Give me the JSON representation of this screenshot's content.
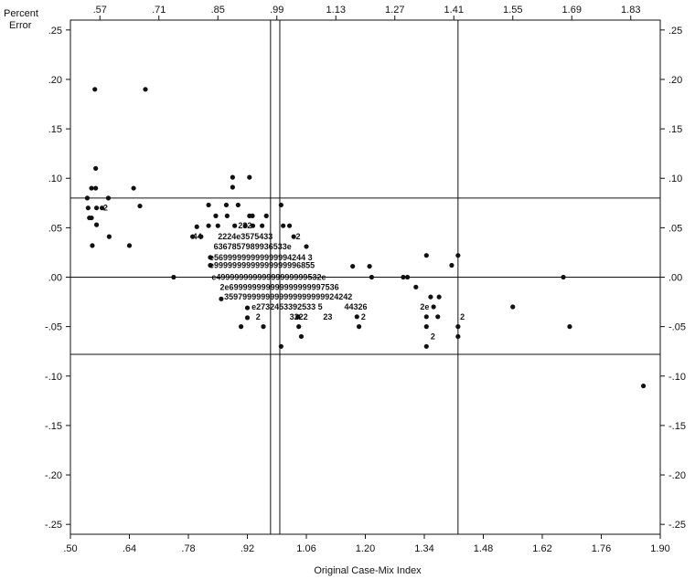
{
  "chart_data": {
    "type": "scatter",
    "xlabel": "Original Case-Mix Index",
    "ylabel": [
      "Percent",
      "Error"
    ],
    "xlim": [
      0.5,
      1.9
    ],
    "ylim": [
      -0.26,
      0.26
    ],
    "x_ticks_bottom": [
      ".50",
      ".64",
      ".78",
      ".92",
      "1.06",
      "1.20",
      "1.34",
      "1.48",
      "1.62",
      "1.76",
      "1.90"
    ],
    "x_ticks_top": [
      ".57",
      ".71",
      ".85",
      ".99",
      "1.13",
      "1.27",
      "1.41",
      "1.55",
      "1.69",
      "1.83"
    ],
    "y_ticks": [
      ".25",
      ".20",
      ".15",
      ".10",
      ".05",
      ".00",
      "-.05",
      "-.10",
      "-.15",
      "-.20",
      "-.25"
    ],
    "y_tick_values": [
      0.25,
      0.2,
      0.15,
      0.1,
      0.05,
      0.0,
      -0.05,
      -0.1,
      -0.15,
      -0.2,
      -0.25
    ],
    "reference_lines": {
      "horizontal": [
        0.08,
        0.0,
        -0.078
      ],
      "vertical": [
        0.975,
        0.997,
        1.42
      ]
    },
    "points": [
      [
        0.54,
        0.08
      ],
      [
        0.542,
        0.07
      ],
      [
        0.545,
        0.06
      ],
      [
        0.55,
        0.09
      ],
      [
        0.55,
        0.06
      ],
      [
        0.552,
        0.032
      ],
      [
        0.558,
        0.19
      ],
      [
        0.56,
        0.11
      ],
      [
        0.56,
        0.09
      ],
      [
        0.562,
        0.07
      ],
      [
        0.562,
        0.053
      ],
      [
        0.575,
        0.07
      ],
      [
        0.59,
        0.08
      ],
      [
        0.592,
        0.041
      ],
      [
        0.64,
        0.032
      ],
      [
        0.65,
        0.09
      ],
      [
        0.665,
        0.072
      ],
      [
        0.678,
        0.19
      ],
      [
        0.745,
        0.0
      ],
      [
        0.79,
        0.041
      ],
      [
        0.8,
        0.051
      ],
      [
        0.81,
        0.041
      ],
      [
        0.828,
        0.073
      ],
      [
        0.828,
        0.052
      ],
      [
        0.832,
        0.02
      ],
      [
        0.832,
        0.012
      ],
      [
        0.845,
        0.062
      ],
      [
        0.85,
        0.052
      ],
      [
        0.858,
        -0.022
      ],
      [
        0.87,
        0.073
      ],
      [
        0.872,
        0.062
      ],
      [
        0.885,
        0.101
      ],
      [
        0.885,
        0.091
      ],
      [
        0.89,
        0.052
      ],
      [
        0.898,
        0.073
      ],
      [
        0.905,
        -0.05
      ],
      [
        0.915,
        0.052
      ],
      [
        0.92,
        -0.031
      ],
      [
        0.92,
        -0.041
      ],
      [
        0.925,
        0.101
      ],
      [
        0.925,
        0.062
      ],
      [
        0.932,
        0.062
      ],
      [
        0.933,
        0.052
      ],
      [
        0.955,
        0.052
      ],
      [
        0.958,
        -0.05
      ],
      [
        0.965,
        0.062
      ],
      [
        1.0,
        0.073
      ],
      [
        1.0,
        -0.07
      ],
      [
        1.005,
        0.052
      ],
      [
        1.02,
        0.052
      ],
      [
        1.03,
        0.041
      ],
      [
        1.04,
        -0.04
      ],
      [
        1.042,
        -0.05
      ],
      [
        1.048,
        -0.06
      ],
      [
        1.06,
        0.031
      ],
      [
        1.17,
        0.011
      ],
      [
        1.18,
        -0.04
      ],
      [
        1.185,
        -0.05
      ],
      [
        1.21,
        0.011
      ],
      [
        1.215,
        0.0
      ],
      [
        1.29,
        0.0
      ],
      [
        1.3,
        0.0
      ],
      [
        1.32,
        -0.01
      ],
      [
        1.345,
        0.022
      ],
      [
        1.345,
        -0.04
      ],
      [
        1.345,
        -0.05
      ],
      [
        1.345,
        -0.07
      ],
      [
        1.355,
        -0.02
      ],
      [
        1.362,
        -0.03
      ],
      [
        1.372,
        -0.04
      ],
      [
        1.375,
        -0.02
      ],
      [
        1.405,
        0.012
      ],
      [
        1.42,
        0.022
      ],
      [
        1.42,
        -0.06
      ],
      [
        1.42,
        -0.05
      ],
      [
        1.55,
        -0.03
      ],
      [
        1.67,
        0.0
      ],
      [
        1.685,
        -0.05
      ],
      [
        1.86,
        -0.11
      ]
    ],
    "digit_labels": [
      {
        "x": 0.578,
        "y": 0.07,
        "text": "2"
      },
      {
        "x": 0.898,
        "y": 0.052,
        "text": "232"
      },
      {
        "x": 1.035,
        "y": 0.041,
        "text": "2"
      },
      {
        "x": 0.79,
        "y": 0.041,
        "text": "44"
      },
      {
        "x": 0.85,
        "y": 0.041,
        "text": "2224e3575433"
      },
      {
        "x": 0.84,
        "y": 0.031,
        "text": "6367857989936533e"
      },
      {
        "x": 0.83,
        "y": 0.02,
        "text": "e56999999999999994244 3"
      },
      {
        "x": 0.83,
        "y": 0.012,
        "text": "e9999999999999999996855"
      },
      {
        "x": 0.835,
        "y": 0.0,
        "text": "e49999999999999999999532e"
      },
      {
        "x": 0.855,
        "y": -0.01,
        "text": "2e699999999999999999997536"
      },
      {
        "x": 0.865,
        "y": -0.02,
        "text": "3597999999999999999999924242"
      },
      {
        "x": 0.93,
        "y": -0.03,
        "text": "e2732453392533 5"
      },
      {
        "x": 1.15,
        "y": -0.03,
        "text": "44326"
      },
      {
        "x": 1.33,
        "y": -0.03,
        "text": "2e"
      },
      {
        "x": 0.94,
        "y": -0.04,
        "text": "2"
      },
      {
        "x": 1.02,
        "y": -0.04,
        "text": "3222"
      },
      {
        "x": 1.1,
        "y": -0.04,
        "text": "23"
      },
      {
        "x": 1.19,
        "y": -0.04,
        "text": "2"
      },
      {
        "x": 1.425,
        "y": -0.04,
        "text": "2"
      },
      {
        "x": 1.355,
        "y": -0.06,
        "text": "2"
      }
    ]
  }
}
